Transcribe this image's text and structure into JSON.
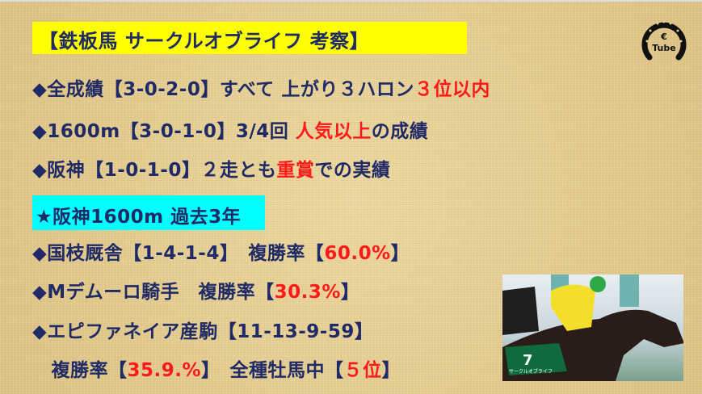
{
  "title": "【鉄板馬 サークルオブライフ 考察】",
  "lines": [
    {
      "a": "◆全成績【3-0-2-0】すべて 上がり３ハロン",
      "b": "３位以内",
      "c": ""
    },
    {
      "a": "◆1600m【3-0-1-0】3/4回 ",
      "b": "人気以上",
      "c": "の成績"
    },
    {
      "a": "◆阪神【1-0-1-0】２走とも",
      "b": "重賞",
      "c": "での実績"
    }
  ],
  "subtitle": "★阪神1600m 過去3年",
  "stats": [
    {
      "a": "◆国枝厩舎【1-4-1-4】　複勝率【",
      "b": "60.0%",
      "c": "】"
    },
    {
      "a": "◆Mデムーロ騎手　複勝率【",
      "b": "30.3%",
      "c": "】"
    },
    {
      "a": "◆エピファネイア産駒【11-13-9-59】",
      "b": "",
      "c": ""
    },
    {
      "a": "　複勝率【",
      "b": "35.9.%",
      "c": "】　全種牡馬中【",
      "d": "５位",
      "e": "】"
    }
  ],
  "logo": {
    "text": "Tube"
  },
  "photo": {
    "saddle_number": "7",
    "saddle_name": "サークルオブライフ"
  },
  "colors": {
    "text": "#1f2a66",
    "highlight": "#ff1a1a",
    "title_bg": "#ffff00",
    "subtitle_bg": "#00ffff"
  }
}
